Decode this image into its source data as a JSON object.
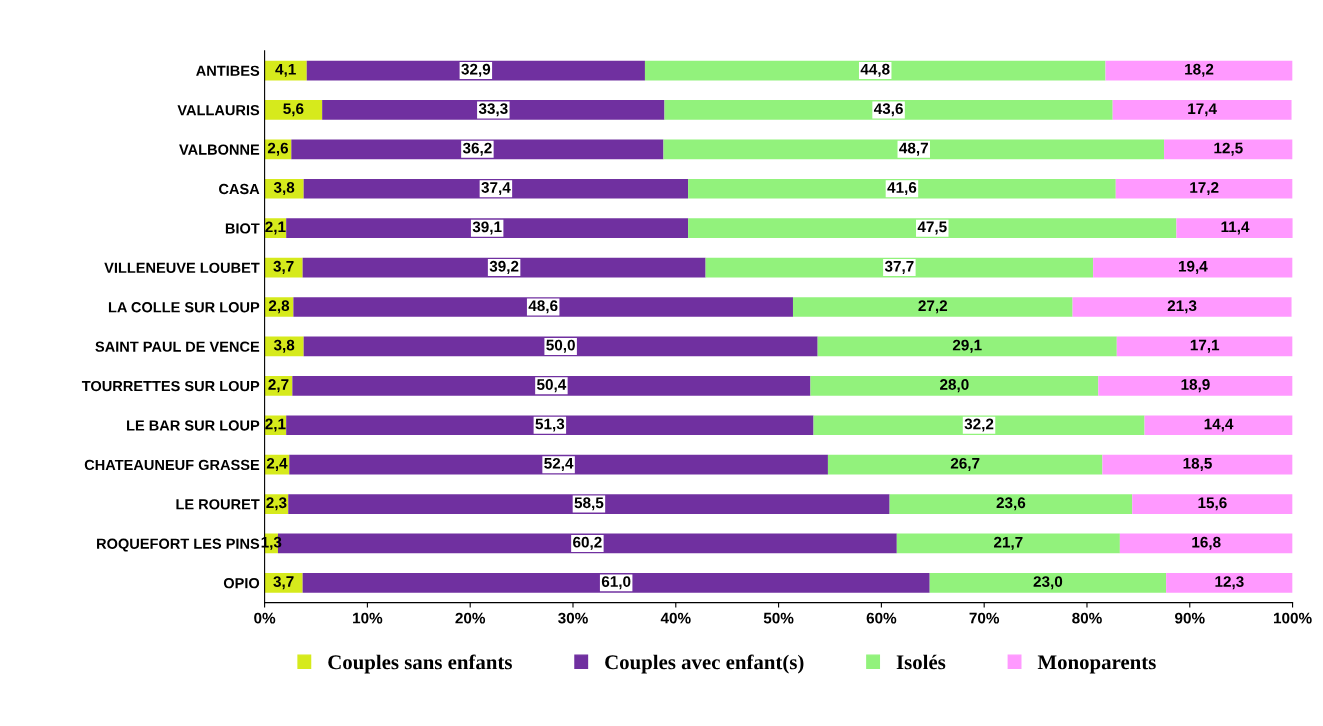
{
  "chart_data": {
    "type": "bar",
    "orientation": "horizontal",
    "stacked": true,
    "categories": [
      "ANTIBES",
      "VALLAURIS",
      "VALBONNE",
      "CASA",
      "BIOT",
      "VILLENEUVE LOUBET",
      "LA COLLE SUR LOUP",
      "SAINT PAUL DE VENCE",
      "TOURRETTES SUR LOUP",
      "LE BAR SUR LOUP",
      "CHATEAUNEUF GRASSE",
      "LE ROURET",
      "ROQUEFORT LES PINS",
      "OPIO"
    ],
    "series": [
      {
        "name": "Couples sans enfants",
        "color": "#d6ea1c",
        "values": [
          4.1,
          5.6,
          2.6,
          3.8,
          2.1,
          3.7,
          2.8,
          3.8,
          2.7,
          2.1,
          2.4,
          2.3,
          1.3,
          3.7
        ],
        "value_labels": [
          "4,1",
          "5,6",
          "2,6",
          "3,8",
          "2,1",
          "3,7",
          "2,8",
          "3,8",
          "2,7",
          "2,1",
          "2,4",
          "2,3",
          "1,3",
          "3,7"
        ]
      },
      {
        "name": "Couples avec enfant(s)",
        "color": "#7030a0",
        "values": [
          32.9,
          33.3,
          36.2,
          37.4,
          39.1,
          39.2,
          48.6,
          50.0,
          50.4,
          51.3,
          52.4,
          58.5,
          60.2,
          61.0
        ],
        "value_labels": [
          "32,9",
          "33,3",
          "36,2",
          "37,4",
          "39,1",
          "39,2",
          "48,6",
          "50,0",
          "50,4",
          "51,3",
          "52,4",
          "58,5",
          "60,2",
          "61,0"
        ]
      },
      {
        "name": "Isolés",
        "color": "#92f27c",
        "values": [
          44.8,
          43.6,
          48.7,
          41.6,
          47.5,
          37.7,
          27.2,
          29.1,
          28.0,
          32.2,
          26.7,
          23.6,
          21.7,
          23.0
        ],
        "value_labels": [
          "44,8",
          "43,6",
          "48,7",
          "41,6",
          "47,5",
          "37,7",
          "27,2",
          "29,1",
          "28,0",
          "32,2",
          "26,7",
          "23,6",
          "21,7",
          "23,0"
        ]
      },
      {
        "name": "Monoparents",
        "color": "#ff99ff",
        "values": [
          18.2,
          17.4,
          12.5,
          17.2,
          11.4,
          19.4,
          21.3,
          17.1,
          18.9,
          14.4,
          18.5,
          15.6,
          16.8,
          12.3
        ],
        "value_labels": [
          "18,2",
          "17,4",
          "12,5",
          "17,2",
          "11,4",
          "19,4",
          "21,3",
          "17,1",
          "18,9",
          "14,4",
          "18,5",
          "15,6",
          "16,8",
          "12,3"
        ]
      }
    ],
    "xlim": [
      0,
      100
    ],
    "xticks": [
      {
        "value": 0,
        "label": "0%"
      },
      {
        "value": 10,
        "label": "10%"
      },
      {
        "value": 20,
        "label": "20%"
      },
      {
        "value": 30,
        "label": "30%"
      },
      {
        "value": 40,
        "label": "40%"
      },
      {
        "value": 50,
        "label": "50%"
      },
      {
        "value": 60,
        "label": "60%"
      },
      {
        "value": 70,
        "label": "70%"
      },
      {
        "value": 80,
        "label": "80%"
      },
      {
        "value": 90,
        "label": "90%"
      },
      {
        "value": 100,
        "label": "100%"
      }
    ],
    "grid": false,
    "legend": "bottom"
  }
}
